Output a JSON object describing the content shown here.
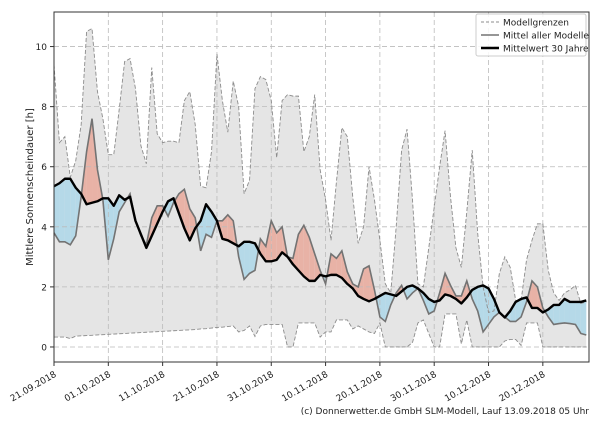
{
  "chart_data": {
    "type": "area",
    "ylabel": "Mittlere Sonnenscheindauer [h]",
    "xlabel": "",
    "ylim": [
      -0.5,
      11.15
    ],
    "xlim": [
      "2018-09-21",
      "2018-12-28"
    ],
    "yticks": [
      0,
      2,
      4,
      6,
      8,
      10
    ],
    "xticks": [
      {
        "date": "2018-09-21",
        "label": "21.09.2018"
      },
      {
        "date": "2018-10-01",
        "label": "01.10.2018"
      },
      {
        "date": "2018-10-11",
        "label": "11.10.2018"
      },
      {
        "date": "2018-10-21",
        "label": "21.10.2018"
      },
      {
        "date": "2018-10-31",
        "label": "31.10.2018"
      },
      {
        "date": "2018-11-10",
        "label": "10.11.2018"
      },
      {
        "date": "2018-11-20",
        "label": "20.11.2018"
      },
      {
        "date": "2018-11-30",
        "label": "30.11.2018"
      },
      {
        "date": "2018-12-10",
        "label": "10.12.2018"
      },
      {
        "date": "2018-12-20",
        "label": "20.12.2018"
      }
    ],
    "grid": true,
    "legend_position": "top-right",
    "legend": [
      "Modellgrenzen",
      "Mittel aller Modelle",
      "Mittelwert 30 Jahre"
    ],
    "colors": {
      "band": "#e5e5e5",
      "band_edge": "#8c8c8c",
      "model_mean": "#737373",
      "climate_mean": "#000000",
      "above_climate": "#e8b2a6",
      "below_climate": "#b5d9e8"
    },
    "x": [
      "2018-09-21",
      "2018-09-22",
      "2018-09-23",
      "2018-09-24",
      "2018-09-25",
      "2018-09-26",
      "2018-09-27",
      "2018-09-28",
      "2018-09-29",
      "2018-09-30",
      "2018-10-01",
      "2018-10-02",
      "2018-10-03",
      "2018-10-04",
      "2018-10-05",
      "2018-10-06",
      "2018-10-07",
      "2018-10-08",
      "2018-10-09",
      "2018-10-10",
      "2018-10-11",
      "2018-10-12",
      "2018-10-13",
      "2018-10-14",
      "2018-10-15",
      "2018-10-16",
      "2018-10-17",
      "2018-10-18",
      "2018-10-19",
      "2018-10-20",
      "2018-10-21",
      "2018-10-22",
      "2018-10-23",
      "2018-10-24",
      "2018-10-25",
      "2018-10-26",
      "2018-10-27",
      "2018-10-28",
      "2018-10-29",
      "2018-10-30",
      "2018-10-31",
      "2018-11-01",
      "2018-11-02",
      "2018-11-03",
      "2018-11-04",
      "2018-11-05",
      "2018-11-06",
      "2018-11-07",
      "2018-11-08",
      "2018-11-09",
      "2018-11-10",
      "2018-11-11",
      "2018-11-12",
      "2018-11-13",
      "2018-11-14",
      "2018-11-15",
      "2018-11-16",
      "2018-11-17",
      "2018-11-18",
      "2018-11-19",
      "2018-11-20",
      "2018-11-21",
      "2018-11-22",
      "2018-11-23",
      "2018-11-24",
      "2018-11-25",
      "2018-11-26",
      "2018-11-27",
      "2018-11-28",
      "2018-11-29",
      "2018-11-30",
      "2018-12-01",
      "2018-12-02",
      "2018-12-03",
      "2018-12-04",
      "2018-12-05",
      "2018-12-06",
      "2018-12-07",
      "2018-12-08",
      "2018-12-09",
      "2018-12-10",
      "2018-12-11",
      "2018-12-12",
      "2018-12-13",
      "2018-12-14",
      "2018-12-15",
      "2018-12-16",
      "2018-12-17",
      "2018-12-18",
      "2018-12-19",
      "2018-12-20",
      "2018-12-21",
      "2018-12-22",
      "2018-12-23",
      "2018-12-24",
      "2018-12-25",
      "2018-12-26",
      "2018-12-27",
      "2018-12-28"
    ],
    "series": [
      {
        "name": "Modellgrenzen",
        "role": "upper",
        "values": [
          9.4,
          6.8,
          7.0,
          5.65,
          6.2,
          7.4,
          10.5,
          10.6,
          8.5,
          7.6,
          6.4,
          6.4,
          7.9,
          9.5,
          9.6,
          8.6,
          6.7,
          6.1,
          9.3,
          7.1,
          6.8,
          6.85,
          6.85,
          6.8,
          8.2,
          8.5,
          7.4,
          5.35,
          5.3,
          6.5,
          9.75,
          8.2,
          7.15,
          8.85,
          8.0,
          5.1,
          5.55,
          8.6,
          9.0,
          8.9,
          8.2,
          6.3,
          8.2,
          8.4,
          8.35,
          8.35,
          6.5,
          7.0,
          8.4,
          5.9,
          4.9,
          3.55,
          5.5,
          7.3,
          7.0,
          5.0,
          3.45,
          4.0,
          6.0,
          4.9,
          3.55,
          2.1,
          1.8,
          4.0,
          6.55,
          7.25,
          4.9,
          2.1,
          2.0,
          3.3,
          4.65,
          6.0,
          7.2,
          5.0,
          3.3,
          2.65,
          4.5,
          6.55,
          3.8,
          2.0,
          1.15,
          1.2,
          2.45,
          3.0,
          2.65,
          1.55,
          1.55,
          2.9,
          3.55,
          4.1,
          4.1,
          2.55,
          1.8,
          1.55,
          1.8,
          1.9,
          2.05,
          1.45,
          1.5
        ]
      },
      {
        "name": "Modellgrenzen",
        "role": "lower",
        "values": [
          0.33,
          0.33,
          0.33,
          0.28,
          0.36,
          0.37,
          0.38,
          0.39,
          0.4,
          0.41,
          0.42,
          0.43,
          0.44,
          0.45,
          0.46,
          0.47,
          0.48,
          0.49,
          0.5,
          0.51,
          0.52,
          0.53,
          0.54,
          0.55,
          0.56,
          0.57,
          0.58,
          0.6,
          0.61,
          0.63,
          0.65,
          0.66,
          0.68,
          0.7,
          0.5,
          0.55,
          0.7,
          0.35,
          0.7,
          0.75,
          0.75,
          0.75,
          0.75,
          0,
          0,
          0.8,
          0.8,
          0.8,
          0.8,
          0.33,
          0.5,
          0.5,
          0.9,
          0.9,
          0.9,
          0.6,
          0.7,
          0.6,
          0.5,
          0.45,
          0.8,
          0,
          0,
          0,
          0,
          0,
          0.15,
          0.8,
          0.9,
          0.45,
          0,
          0,
          1.1,
          1.1,
          1.1,
          0.1,
          0.9,
          0,
          0,
          0,
          0,
          0,
          0,
          0.2,
          0.25,
          0.25,
          0.05,
          0.8,
          0.8,
          0.8,
          0,
          0,
          0,
          0,
          0,
          0,
          0,
          0,
          0
        ]
      },
      {
        "name": "Mittel aller Modelle",
        "role": "model_mean",
        "values": [
          3.8,
          3.5,
          3.5,
          3.4,
          3.7,
          5.0,
          6.5,
          7.6,
          5.9,
          4.9,
          2.9,
          3.6,
          4.5,
          4.8,
          5.1,
          4.2,
          3.7,
          3.4,
          4.3,
          4.7,
          4.7,
          4.35,
          4.8,
          5.1,
          5.25,
          4.6,
          4.3,
          3.2,
          3.75,
          3.65,
          4.2,
          4.2,
          4.4,
          4.2,
          3.0,
          2.25,
          2.45,
          2.55,
          3.6,
          3.35,
          4.2,
          3.8,
          4.0,
          3.0,
          2.95,
          3.75,
          4.05,
          3.65,
          3.1,
          2.55,
          2.1,
          3.1,
          2.95,
          3.2,
          2.5,
          2.1,
          2.0,
          2.6,
          2.7,
          1.9,
          1.0,
          0.85,
          1.4,
          1.8,
          2.05,
          1.6,
          1.8,
          1.95,
          1.55,
          1.1,
          1.2,
          1.8,
          2.45,
          2.05,
          1.7,
          1.7,
          2.2,
          1.6,
          1.2,
          0.5,
          0.75,
          1.0,
          1.15,
          1.0,
          0.85,
          0.85,
          1.0,
          1.5,
          2.2,
          2.0,
          1.3,
          1.0,
          0.75,
          0.78,
          0.8,
          0.78,
          0.75,
          0.45,
          0.4
        ]
      },
      {
        "name": "Mittelwert 30 Jahre",
        "role": "climate_mean",
        "values": [
          5.35,
          5.45,
          5.6,
          5.6,
          5.3,
          5.1,
          4.75,
          4.8,
          4.85,
          4.95,
          4.95,
          4.7,
          5.05,
          4.9,
          5.0,
          4.2,
          3.75,
          3.3,
          3.7,
          4.1,
          4.5,
          4.85,
          4.95,
          4.45,
          3.95,
          3.55,
          3.95,
          4.2,
          4.75,
          4.5,
          4.2,
          3.6,
          3.55,
          3.45,
          3.35,
          3.5,
          3.5,
          3.45,
          3.1,
          2.85,
          2.85,
          2.9,
          3.15,
          3.0,
          2.75,
          2.55,
          2.35,
          2.2,
          2.2,
          2.4,
          2.35,
          2.4,
          2.4,
          2.3,
          2.1,
          1.95,
          1.7,
          1.6,
          1.52,
          1.6,
          1.7,
          1.8,
          1.75,
          1.7,
          1.85,
          2.0,
          2.05,
          1.95,
          1.8,
          1.6,
          1.5,
          1.55,
          1.75,
          1.7,
          1.6,
          1.45,
          1.65,
          1.9,
          2.0,
          2.05,
          1.95,
          1.6,
          1.15,
          0.98,
          1.2,
          1.5,
          1.6,
          1.65,
          1.3,
          1.3,
          1.15,
          1.25,
          1.4,
          1.4,
          1.6,
          1.5,
          1.5,
          1.5,
          1.55
        ]
      }
    ]
  },
  "footer": {
    "credit": "(c) Donnerwetter.de GmbH SLM-Modell, Lauf 13.09.2018 05 Uhr"
  }
}
